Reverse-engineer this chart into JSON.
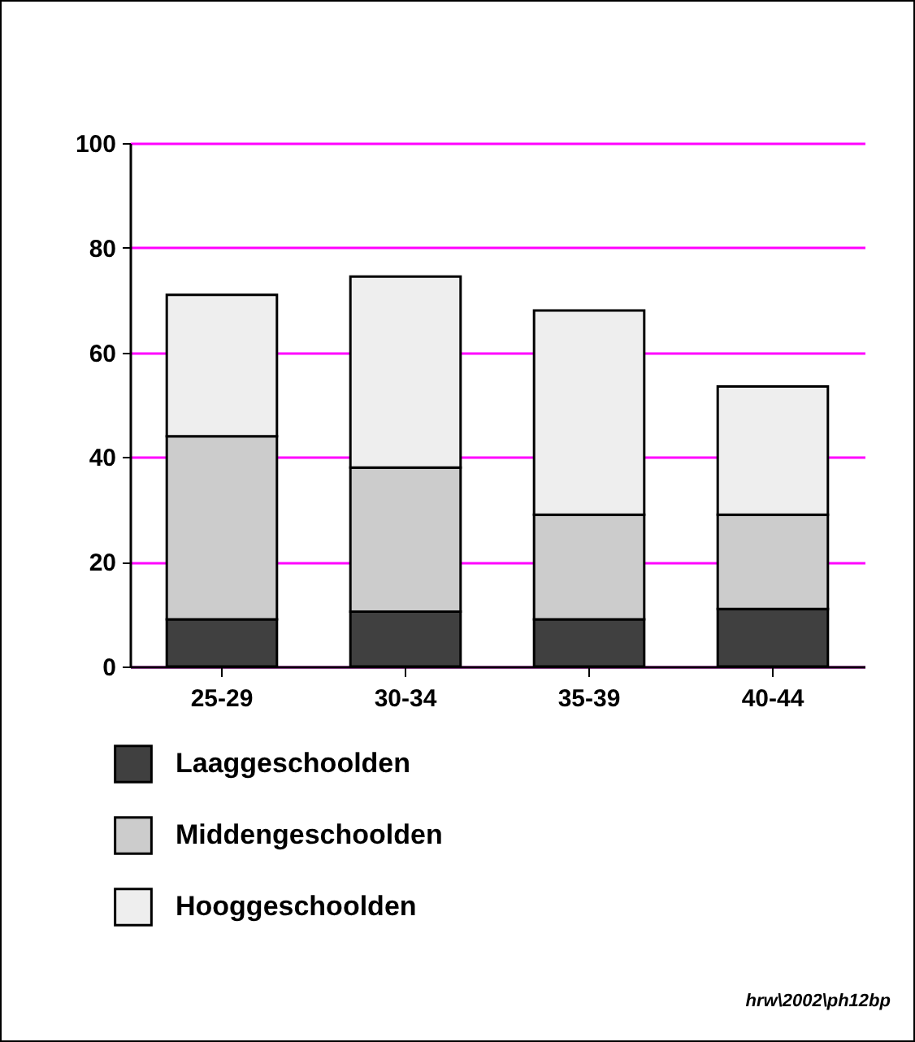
{
  "chart_data": {
    "type": "bar",
    "stacked": true,
    "categories": [
      "25-29",
      "30-34",
      "35-39",
      "40-44"
    ],
    "series": [
      {
        "name": "Laaggeschoolden",
        "color": "#404040",
        "values": [
          9,
          10.5,
          9,
          11
        ]
      },
      {
        "name": "Middengeschoolden",
        "color": "#cccccc",
        "values": [
          35,
          27.5,
          20,
          18
        ]
      },
      {
        "name": "Hooggeschoolden",
        "color": "#eeeeee",
        "values": [
          27,
          36.5,
          39,
          24.5
        ]
      }
    ],
    "ylim": [
      0,
      100
    ],
    "yticks": [
      0,
      20,
      40,
      60,
      80,
      100
    ],
    "grid": "y",
    "legend": "bottom left",
    "annotations": [
      "hrw\\2002\\ph12bp"
    ]
  }
}
